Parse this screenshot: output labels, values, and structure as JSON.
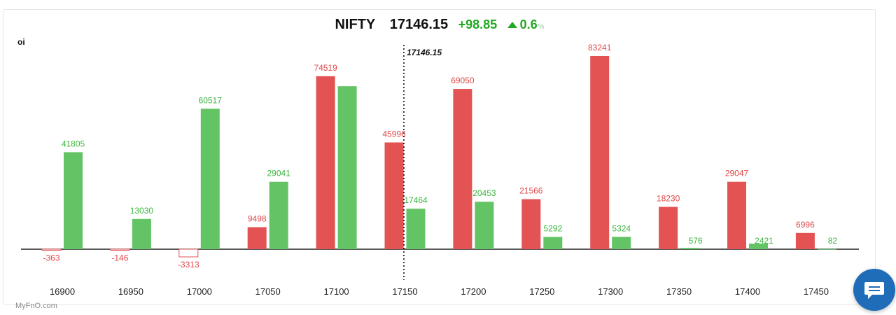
{
  "header": {
    "symbol": "NIFTY",
    "price": "17146.15",
    "change": "+98.85",
    "change_pct": "0.6",
    "pct_unit": "%"
  },
  "oi_label": "oi",
  "watermark": "MyFnO.com",
  "colors": {
    "call": "#e35354",
    "put": "#63c466",
    "call_text": "#e04848",
    "put_text": "#3cb73f",
    "axis": "#222222"
  },
  "chart_data": {
    "type": "bar",
    "categories": [
      "16900",
      "16950",
      "17000",
      "17050",
      "17100",
      "17150",
      "17200",
      "17250",
      "17300",
      "17350",
      "17400",
      "17450"
    ],
    "series": [
      {
        "color": "red",
        "values": [
          -363,
          -146,
          -3313,
          9498,
          74519,
          45996,
          69050,
          21566,
          83241,
          18230,
          29047,
          6996
        ]
      },
      {
        "color": "green",
        "values": [
          null,
          null,
          null,
          29041,
          70219,
          17464,
          20453,
          5292,
          5324,
          576,
          2421,
          82
        ]
      }
    ],
    "green_upper_values": [
      41805,
      13030,
      60517
    ],
    "data_labels_red": [
      "-363",
      "-146",
      "-3313",
      "9498",
      "74519",
      "45996",
      "69050",
      "21566",
      "83241",
      "18230",
      "29047",
      "6996"
    ],
    "data_labels_green": [
      "41805",
      "13030",
      "60517",
      "29041",
      "",
      "17464",
      "20453",
      "5292",
      "5324",
      "576",
      "2421",
      "82"
    ],
    "reference_line": {
      "value": 17146.15,
      "label": "17146.15"
    },
    "ylim": [
      -5000,
      90000
    ],
    "grid": false,
    "legend": "none"
  }
}
